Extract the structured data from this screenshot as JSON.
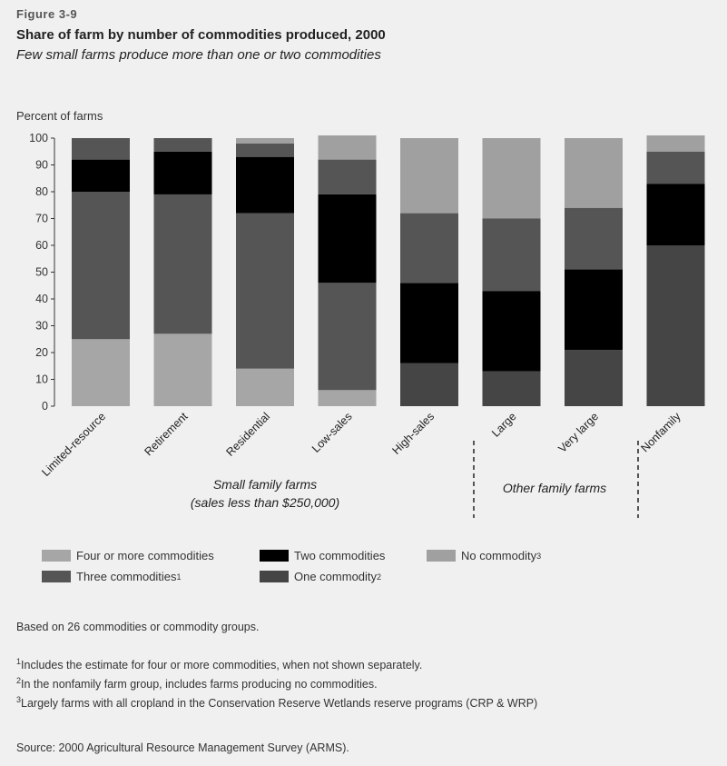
{
  "figure_label": "Figure 3-9",
  "title": "Share of farm by number of commodities produced, 2000",
  "subtitle": "Few small farms produce more than one or two commodities",
  "chart_data": {
    "type": "bar",
    "stacked": true,
    "ylabel": "Percent of farms",
    "ylim": [
      0,
      100
    ],
    "yticks": [
      0,
      10,
      20,
      30,
      40,
      50,
      60,
      70,
      80,
      90,
      100
    ],
    "categories": [
      "Limited-resource",
      "Retirement",
      "Residential",
      "Low-sales",
      "High-sales",
      "Large",
      "Very large",
      "Nonfamily"
    ],
    "group_labels": [
      {
        "line1": "Small family farms",
        "line2": "(sales less than $250,000)"
      },
      {
        "line1": "Other family farms",
        "line2": ""
      }
    ],
    "series": [
      {
        "name": "Four or more commodities",
        "color": "#a6a6a6",
        "values": [
          25,
          27,
          14,
          6,
          0,
          0,
          0,
          0
        ]
      },
      {
        "name": "One commodity",
        "color": "#454545",
        "values": [
          0,
          0,
          0,
          0,
          16,
          13,
          21,
          60
        ]
      },
      {
        "name": "Two commodities",
        "color": "#000000",
        "values": [
          0,
          0,
          0,
          0,
          30,
          30,
          30,
          23
        ]
      },
      {
        "name": "Three commodities",
        "color": "#555555",
        "values": [
          55,
          52,
          58,
          40,
          26,
          27,
          23,
          12
        ]
      },
      {
        "name": "Two commodities",
        "color": "#000000",
        "values": [
          12,
          16,
          21,
          33,
          0,
          0,
          0,
          0
        ]
      },
      {
        "name": "Three commodities",
        "color": "#555555",
        "values": [
          8,
          5,
          5,
          13,
          0,
          0,
          0,
          0
        ]
      },
      {
        "name": "No commodity",
        "color": "#a0a0a0",
        "values": [
          0,
          0,
          2,
          9,
          28,
          30,
          26,
          6
        ]
      }
    ]
  },
  "legend": [
    {
      "label": "Four or more commodities",
      "sup": "",
      "color": "#a6a6a6"
    },
    {
      "label": "Two commodities",
      "sup": "",
      "color": "#000000"
    },
    {
      "label": "No commodity",
      "sup": "3",
      "color": "#a0a0a0"
    },
    {
      "label": "Three commodities",
      "sup": "1",
      "color": "#555555"
    },
    {
      "label": "One commodity",
      "sup": "2",
      "color": "#454545"
    }
  ],
  "notes": {
    "basis": "Based on 26 commodities or commodity groups.",
    "footnote1": "Includes the estimate for four or more commodities, when not shown separately.",
    "footnote2": "In the nonfamily farm group, includes farms producing no commodities.",
    "footnote3": "Largely farms with all cropland in the Conservation Reserve Wetlands reserve programs (CRP & WRP)",
    "source": "Source: 2000 Agricultural Resource Management Survey (ARMS)."
  }
}
